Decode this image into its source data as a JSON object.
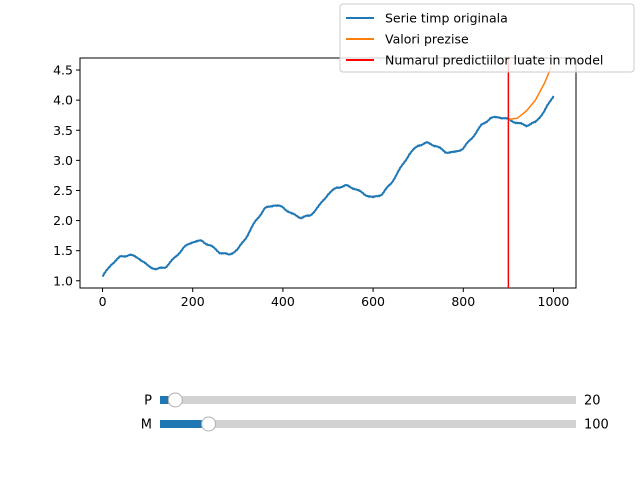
{
  "chart_data": {
    "type": "line",
    "title": "",
    "xlabel": "",
    "ylabel": "",
    "xlim": [
      -50,
      1050
    ],
    "ylim": [
      0.88,
      4.7
    ],
    "xticks": [
      0,
      200,
      400,
      600,
      800,
      1000
    ],
    "yticks": [
      1.0,
      1.5,
      2.0,
      2.5,
      3.0,
      3.5,
      4.0,
      4.5
    ],
    "grid": false,
    "legend_position": "top-right",
    "series": [
      {
        "name": "Serie timp originala",
        "color": "#1f77b4",
        "x": [
          0,
          20,
          40,
          60,
          80,
          100,
          120,
          140,
          160,
          180,
          200,
          220,
          240,
          260,
          280,
          300,
          320,
          340,
          360,
          380,
          400,
          420,
          440,
          460,
          480,
          500,
          520,
          540,
          560,
          580,
          600,
          620,
          640,
          660,
          680,
          700,
          720,
          740,
          760,
          780,
          800,
          820,
          840,
          860,
          880,
          900,
          920,
          940,
          960,
          980,
          1000
        ],
        "y": [
          1.07,
          1.28,
          1.4,
          1.43,
          1.38,
          1.25,
          1.19,
          1.23,
          1.38,
          1.55,
          1.65,
          1.66,
          1.58,
          1.47,
          1.43,
          1.52,
          1.74,
          2.0,
          2.2,
          2.26,
          2.22,
          2.11,
          2.05,
          2.08,
          2.24,
          2.44,
          2.55,
          2.58,
          2.53,
          2.44,
          2.38,
          2.44,
          2.62,
          2.86,
          3.1,
          3.25,
          3.29,
          3.24,
          3.14,
          3.13,
          3.2,
          3.38,
          3.58,
          3.7,
          3.72,
          3.68,
          3.62,
          3.58,
          3.63,
          3.82,
          4.07
        ]
      },
      {
        "name": "Valori prezise",
        "color": "#ff7f0e",
        "x": [
          900,
          920,
          940,
          960,
          980,
          995
        ],
        "y": [
          3.68,
          3.7,
          3.82,
          4.0,
          4.28,
          4.55
        ]
      }
    ],
    "vline": {
      "name": "Numarul predictiilor luate in model",
      "x": 900,
      "color": "#ff0000"
    }
  },
  "sliders": [
    {
      "label": "P",
      "value": "20",
      "fraction": 0.02,
      "color": "#1f77b4"
    },
    {
      "label": "M",
      "value": "100",
      "fraction": 0.1,
      "color": "#1f77b4"
    }
  ]
}
